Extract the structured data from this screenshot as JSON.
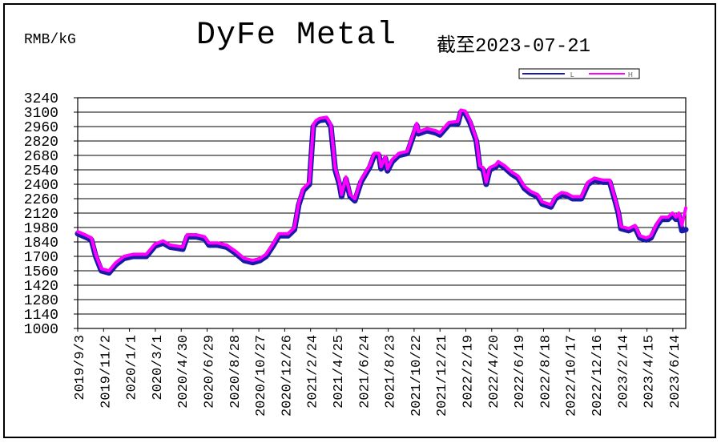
{
  "header": {
    "unit": "RMB/kG",
    "title": "DyFe Metal",
    "as_of": "截至2023-07-21"
  },
  "colors": {
    "low": "#1a1aa8",
    "high": "#ff00ff",
    "grid": "#000000",
    "background": "#ffffff"
  },
  "chart_data": {
    "type": "line",
    "title": "DyFe Metal",
    "xlabel": "",
    "ylabel": "RMB/kG",
    "ylim": [
      1000,
      3240
    ],
    "yticks": [
      1000,
      1140,
      1280,
      1420,
      1560,
      1700,
      1840,
      1980,
      2120,
      2260,
      2400,
      2540,
      2680,
      2820,
      2960,
      3100,
      3240
    ],
    "grid": true,
    "legend": "top-right",
    "x_tick_labels": [
      "2019/9/3",
      "2019/11/2",
      "2020/1/1",
      "2020/3/1",
      "2020/4/30",
      "2020/6/29",
      "2020/8/28",
      "2020/10/27",
      "2020/12/26",
      "2021/2/24",
      "2021/4/25",
      "2021/6/24",
      "2021/8/23",
      "2021/10/22",
      "2021/12/21",
      "2022/2/19",
      "2022/4/20",
      "2022/6/19",
      "2022/8/18",
      "2022/10/17",
      "2022/12/16",
      "2023/2/14",
      "2023/4/15",
      "2023/6/14"
    ],
    "x_range": [
      "2019-09-03",
      "2023-07-21"
    ],
    "series": [
      {
        "name": "L",
        "points": [
          [
            "2019-09-03",
            1920
          ],
          [
            "2019-09-20",
            1890
          ],
          [
            "2019-10-05",
            1860
          ],
          [
            "2019-10-15",
            1700
          ],
          [
            "2019-10-28",
            1560
          ],
          [
            "2019-11-15",
            1540
          ],
          [
            "2019-12-01",
            1620
          ],
          [
            "2019-12-20",
            1680
          ],
          [
            "2020-01-10",
            1700
          ],
          [
            "2020-02-10",
            1700
          ],
          [
            "2020-03-01",
            1800
          ],
          [
            "2020-03-20",
            1830
          ],
          [
            "2020-04-05",
            1790
          ],
          [
            "2020-04-20",
            1780
          ],
          [
            "2020-05-05",
            1770
          ],
          [
            "2020-05-15",
            1890
          ],
          [
            "2020-06-05",
            1890
          ],
          [
            "2020-06-25",
            1870
          ],
          [
            "2020-07-05",
            1810
          ],
          [
            "2020-07-25",
            1810
          ],
          [
            "2020-08-15",
            1790
          ],
          [
            "2020-09-05",
            1730
          ],
          [
            "2020-09-25",
            1660
          ],
          [
            "2020-10-15",
            1640
          ],
          [
            "2020-11-01",
            1660
          ],
          [
            "2020-11-15",
            1700
          ],
          [
            "2020-12-01",
            1800
          ],
          [
            "2020-12-15",
            1900
          ],
          [
            "2021-01-05",
            1900
          ],
          [
            "2021-01-20",
            1960
          ],
          [
            "2021-01-30",
            2200
          ],
          [
            "2021-02-10",
            2340
          ],
          [
            "2021-02-24",
            2400
          ],
          [
            "2021-03-05",
            2960
          ],
          [
            "2021-03-12",
            3000
          ],
          [
            "2021-03-20",
            3020
          ],
          [
            "2021-04-05",
            3030
          ],
          [
            "2021-04-15",
            2960
          ],
          [
            "2021-04-25",
            2540
          ],
          [
            "2021-05-05",
            2400
          ],
          [
            "2021-05-10",
            2280
          ],
          [
            "2021-05-20",
            2450
          ],
          [
            "2021-05-30",
            2280
          ],
          [
            "2021-06-10",
            2240
          ],
          [
            "2021-06-24",
            2420
          ],
          [
            "2021-07-15",
            2570
          ],
          [
            "2021-07-25",
            2680
          ],
          [
            "2021-08-05",
            2680
          ],
          [
            "2021-08-10",
            2550
          ],
          [
            "2021-08-20",
            2650
          ],
          [
            "2021-08-25",
            2530
          ],
          [
            "2021-09-05",
            2620
          ],
          [
            "2021-09-20",
            2680
          ],
          [
            "2021-10-10",
            2700
          ],
          [
            "2021-10-20",
            2820
          ],
          [
            "2021-11-01",
            2970
          ],
          [
            "2021-11-05",
            2890
          ],
          [
            "2021-11-25",
            2920
          ],
          [
            "2021-12-15",
            2900
          ],
          [
            "2021-12-25",
            2880
          ],
          [
            "2022-01-15",
            2980
          ],
          [
            "2022-02-05",
            2990
          ],
          [
            "2022-02-12",
            3100
          ],
          [
            "2022-02-22",
            3090
          ],
          [
            "2022-03-05",
            3000
          ],
          [
            "2022-03-20",
            2820
          ],
          [
            "2022-03-28",
            2560
          ],
          [
            "2022-04-05",
            2540
          ],
          [
            "2022-04-12",
            2400
          ],
          [
            "2022-04-20",
            2540
          ],
          [
            "2022-05-05",
            2570
          ],
          [
            "2022-05-10",
            2600
          ],
          [
            "2022-05-25",
            2560
          ],
          [
            "2022-06-10",
            2500
          ],
          [
            "2022-06-25",
            2460
          ],
          [
            "2022-07-10",
            2360
          ],
          [
            "2022-07-25",
            2310
          ],
          [
            "2022-08-10",
            2280
          ],
          [
            "2022-08-20",
            2210
          ],
          [
            "2022-09-10",
            2180
          ],
          [
            "2022-09-20",
            2260
          ],
          [
            "2022-10-05",
            2300
          ],
          [
            "2022-10-17",
            2290
          ],
          [
            "2022-10-30",
            2260
          ],
          [
            "2022-11-20",
            2260
          ],
          [
            "2022-12-05",
            2400
          ],
          [
            "2022-12-20",
            2440
          ],
          [
            "2023-01-10",
            2420
          ],
          [
            "2023-01-25",
            2420
          ],
          [
            "2023-02-05",
            2260
          ],
          [
            "2023-02-14",
            2120
          ],
          [
            "2023-02-20",
            1970
          ],
          [
            "2023-03-10",
            1950
          ],
          [
            "2023-03-25",
            1980
          ],
          [
            "2023-04-05",
            1880
          ],
          [
            "2023-04-20",
            1860
          ],
          [
            "2023-05-01",
            1880
          ],
          [
            "2023-05-15",
            2000
          ],
          [
            "2023-05-25",
            2060
          ],
          [
            "2023-06-10",
            2060
          ],
          [
            "2023-06-20",
            2100
          ],
          [
            "2023-06-28",
            2060
          ],
          [
            "2023-07-05",
            2100
          ],
          [
            "2023-07-12",
            1950
          ],
          [
            "2023-07-21",
            1960
          ]
        ]
      },
      {
        "name": "H",
        "points": [
          [
            "2019-09-03",
            1940
          ],
          [
            "2019-09-20",
            1910
          ],
          [
            "2019-10-05",
            1880
          ],
          [
            "2019-10-15",
            1720
          ],
          [
            "2019-10-28",
            1580
          ],
          [
            "2019-11-15",
            1560
          ],
          [
            "2019-12-01",
            1640
          ],
          [
            "2019-12-20",
            1700
          ],
          [
            "2020-01-10",
            1720
          ],
          [
            "2020-02-10",
            1720
          ],
          [
            "2020-03-01",
            1820
          ],
          [
            "2020-03-20",
            1850
          ],
          [
            "2020-04-05",
            1810
          ],
          [
            "2020-04-20",
            1800
          ],
          [
            "2020-05-05",
            1790
          ],
          [
            "2020-05-15",
            1910
          ],
          [
            "2020-06-05",
            1910
          ],
          [
            "2020-06-25",
            1890
          ],
          [
            "2020-07-05",
            1830
          ],
          [
            "2020-07-25",
            1830
          ],
          [
            "2020-08-15",
            1810
          ],
          [
            "2020-09-05",
            1750
          ],
          [
            "2020-09-25",
            1680
          ],
          [
            "2020-10-15",
            1660
          ],
          [
            "2020-11-01",
            1680
          ],
          [
            "2020-11-15",
            1720
          ],
          [
            "2020-12-01",
            1820
          ],
          [
            "2020-12-15",
            1920
          ],
          [
            "2021-01-05",
            1920
          ],
          [
            "2021-01-20",
            1980
          ],
          [
            "2021-01-30",
            2220
          ],
          [
            "2021-02-10",
            2360
          ],
          [
            "2021-02-24",
            2420
          ],
          [
            "2021-03-05",
            2980
          ],
          [
            "2021-03-12",
            3020
          ],
          [
            "2021-03-20",
            3040
          ],
          [
            "2021-04-05",
            3050
          ],
          [
            "2021-04-15",
            2980
          ],
          [
            "2021-04-25",
            2560
          ],
          [
            "2021-05-05",
            2420
          ],
          [
            "2021-05-10",
            2300
          ],
          [
            "2021-05-20",
            2470
          ],
          [
            "2021-05-30",
            2300
          ],
          [
            "2021-06-10",
            2260
          ],
          [
            "2021-06-24",
            2440
          ],
          [
            "2021-07-15",
            2590
          ],
          [
            "2021-07-25",
            2700
          ],
          [
            "2021-08-05",
            2700
          ],
          [
            "2021-08-10",
            2570
          ],
          [
            "2021-08-20",
            2670
          ],
          [
            "2021-08-25",
            2550
          ],
          [
            "2021-09-05",
            2640
          ],
          [
            "2021-09-20",
            2700
          ],
          [
            "2021-10-10",
            2720
          ],
          [
            "2021-10-20",
            2840
          ],
          [
            "2021-11-01",
            2990
          ],
          [
            "2021-11-05",
            2910
          ],
          [
            "2021-11-25",
            2940
          ],
          [
            "2021-12-15",
            2920
          ],
          [
            "2021-12-25",
            2900
          ],
          [
            "2022-01-15",
            3000
          ],
          [
            "2022-02-05",
            3010
          ],
          [
            "2022-02-12",
            3120
          ],
          [
            "2022-02-22",
            3110
          ],
          [
            "2022-03-05",
            3020
          ],
          [
            "2022-03-20",
            2840
          ],
          [
            "2022-03-28",
            2580
          ],
          [
            "2022-04-05",
            2560
          ],
          [
            "2022-04-12",
            2420
          ],
          [
            "2022-04-20",
            2560
          ],
          [
            "2022-05-05",
            2590
          ],
          [
            "2022-05-10",
            2620
          ],
          [
            "2022-05-25",
            2580
          ],
          [
            "2022-06-10",
            2520
          ],
          [
            "2022-06-25",
            2480
          ],
          [
            "2022-07-10",
            2380
          ],
          [
            "2022-07-25",
            2330
          ],
          [
            "2022-08-10",
            2300
          ],
          [
            "2022-08-20",
            2230
          ],
          [
            "2022-09-10",
            2200
          ],
          [
            "2022-09-20",
            2280
          ],
          [
            "2022-10-05",
            2320
          ],
          [
            "2022-10-17",
            2310
          ],
          [
            "2022-10-30",
            2280
          ],
          [
            "2022-11-20",
            2280
          ],
          [
            "2022-12-05",
            2420
          ],
          [
            "2022-12-20",
            2460
          ],
          [
            "2023-01-10",
            2440
          ],
          [
            "2023-01-25",
            2440
          ],
          [
            "2023-02-05",
            2280
          ],
          [
            "2023-02-14",
            2140
          ],
          [
            "2023-02-20",
            1990
          ],
          [
            "2023-03-10",
            1970
          ],
          [
            "2023-03-25",
            2000
          ],
          [
            "2023-04-05",
            1900
          ],
          [
            "2023-04-20",
            1880
          ],
          [
            "2023-05-01",
            1900
          ],
          [
            "2023-05-15",
            2020
          ],
          [
            "2023-05-25",
            2080
          ],
          [
            "2023-06-10",
            2080
          ],
          [
            "2023-06-20",
            2120
          ],
          [
            "2023-06-28",
            2080
          ],
          [
            "2023-07-05",
            2120
          ],
          [
            "2023-07-12",
            2000
          ],
          [
            "2023-07-21",
            2170
          ]
        ]
      }
    ]
  }
}
